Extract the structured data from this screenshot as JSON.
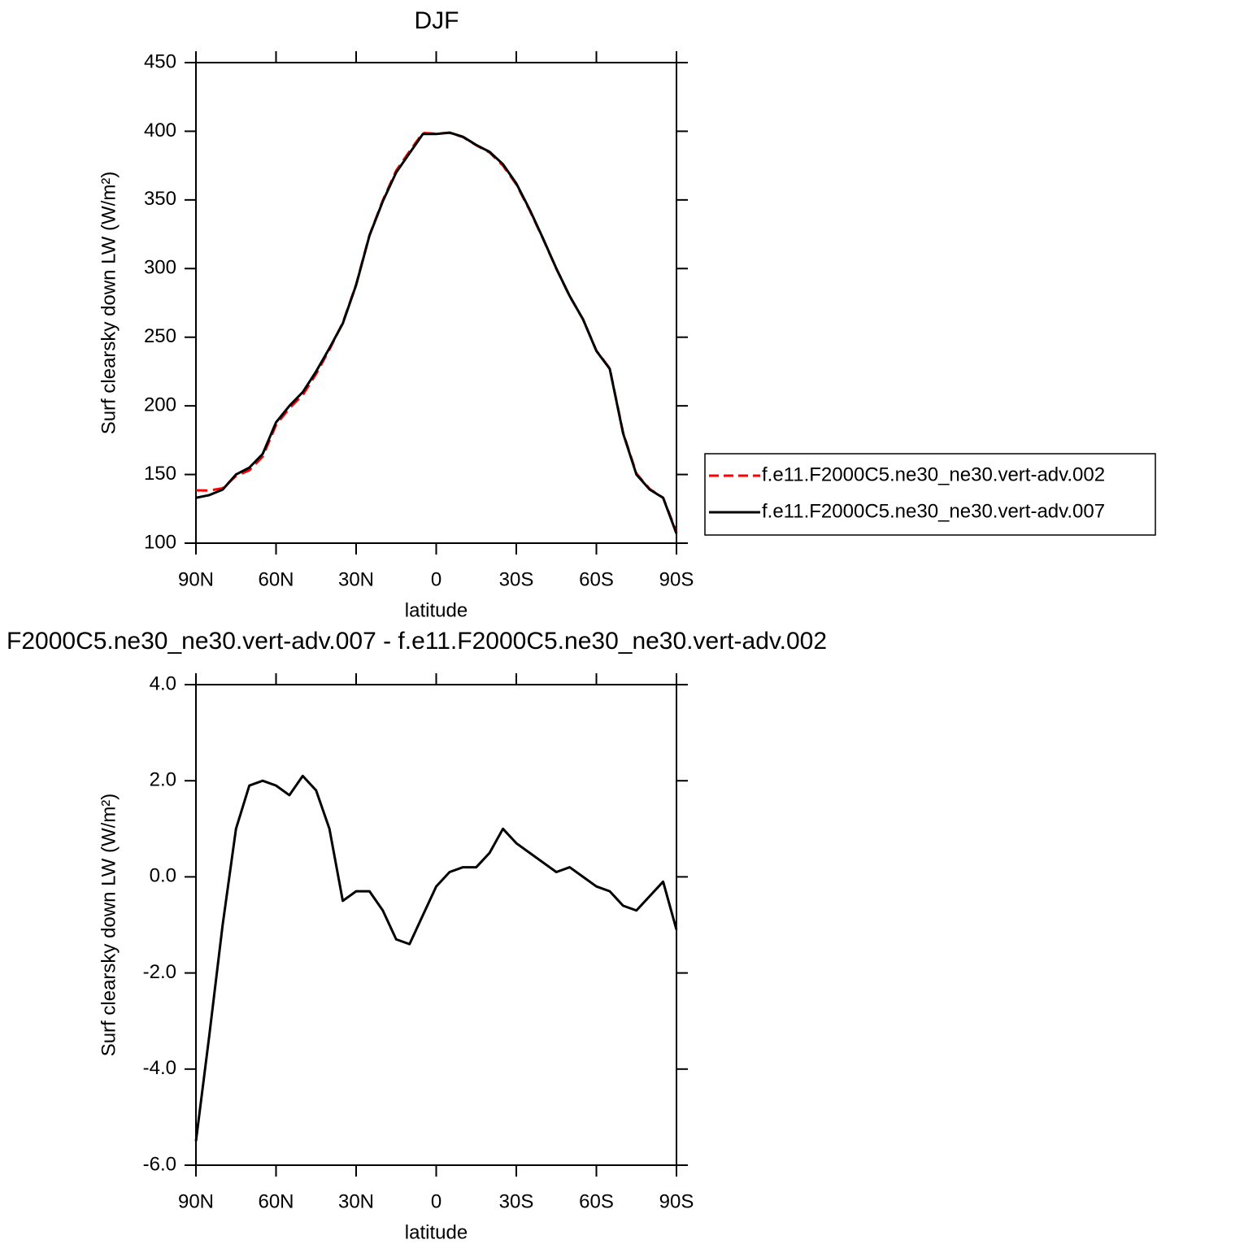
{
  "chart_data": [
    {
      "type": "line",
      "title": "DJF",
      "x_label": "latitude",
      "y_label": "Surf clearsky down LW (W/m²)",
      "x": [
        90,
        85,
        80,
        75,
        70,
        65,
        60,
        55,
        50,
        45,
        40,
        35,
        30,
        25,
        20,
        15,
        10,
        5,
        0,
        -5,
        -10,
        -15,
        -20,
        -25,
        -30,
        -35,
        -40,
        -45,
        -50,
        -55,
        -60,
        -65,
        -70,
        -75,
        -80,
        -85,
        -90
      ],
      "series": [
        {
          "name": "f.e11.F2000C5.ne30_ne30.vert-adv.002",
          "color": "#ff0000",
          "line_style": "dashed",
          "values": [
            138.5,
            138.3,
            140,
            149,
            153.1,
            163,
            186.1,
            198.3,
            207.9,
            223.2,
            241,
            260.5,
            288.3,
            324.3,
            349.7,
            371.3,
            385.4,
            398.8,
            398.2,
            398.9,
            395.8,
            389.8,
            384.5,
            375,
            361.3,
            342.5,
            321.7,
            299.9,
            279.8,
            263,
            240.2,
            227.3,
            180.6,
            150.7,
            139.4,
            133.1,
            108.1
          ]
        },
        {
          "name": "f.e11.F2000C5.ne30_ne30.vert-adv.007",
          "color": "#000000",
          "line_style": "solid",
          "values": [
            133,
            135,
            139,
            150,
            155,
            165,
            188,
            200,
            210,
            225,
            242,
            260,
            288,
            324,
            349,
            370,
            384,
            398,
            398,
            399,
            396,
            390,
            385,
            376,
            362,
            343,
            322,
            300,
            280,
            263,
            240,
            227,
            180,
            150,
            139,
            133,
            107
          ]
        }
      ],
      "xlim": [
        90,
        -90
      ],
      "xticks": [
        {
          "value": 90,
          "label": "90N"
        },
        {
          "value": 60,
          "label": "60N"
        },
        {
          "value": 30,
          "label": "30N"
        },
        0,
        {
          "value": -30,
          "label": "30S"
        },
        {
          "value": -60,
          "label": "60S"
        },
        {
          "value": -90,
          "label": "90S"
        }
      ],
      "ylim": [
        100,
        450
      ],
      "yticks": [
        100,
        150,
        200,
        250,
        300,
        350,
        400,
        450
      ],
      "legend": "outside-right"
    },
    {
      "type": "line",
      "title": "F2000C5.ne30_ne30.vert-adv.007 - f.e11.F2000C5.ne30_ne30.vert-adv.002",
      "x_label": "latitude",
      "y_label": "Surf clearsky down LW (W/m²)",
      "x": [
        90,
        85,
        80,
        75,
        70,
        65,
        60,
        55,
        50,
        45,
        40,
        35,
        30,
        25,
        20,
        15,
        10,
        5,
        0,
        -5,
        -10,
        -15,
        -20,
        -25,
        -30,
        -35,
        -40,
        -45,
        -50,
        -55,
        -60,
        -65,
        -70,
        -75,
        -80,
        -85,
        -90
      ],
      "series": [
        {
          "color": "#000000",
          "line_style": "solid",
          "values": [
            -5.5,
            -3.3,
            -1.0,
            1.0,
            1.9,
            2.0,
            1.9,
            1.7,
            2.1,
            1.8,
            1.0,
            -0.5,
            -0.3,
            -0.3,
            -0.7,
            -1.3,
            -1.4,
            -0.8,
            -0.2,
            0.1,
            0.2,
            0.2,
            0.5,
            1.0,
            0.7,
            0.5,
            0.3,
            0.1,
            0.2,
            0.0,
            -0.2,
            -0.3,
            -0.6,
            -0.7,
            -0.4,
            -0.1,
            -1.1
          ]
        }
      ],
      "xlim": [
        90,
        -90
      ],
      "xticks": [
        {
          "value": 90,
          "label": "90N"
        },
        {
          "value": 60,
          "label": "60N"
        },
        {
          "value": 30,
          "label": "30N"
        },
        0,
        {
          "value": -30,
          "label": "30S"
        },
        {
          "value": -60,
          "label": "60S"
        },
        {
          "value": -90,
          "label": "90S"
        }
      ],
      "ylim": [
        -6,
        4
      ],
      "yticks": [
        {
          "value": -6,
          "label": "-6.0"
        },
        {
          "value": -4,
          "label": "-4.0"
        },
        {
          "value": -2,
          "label": "-2.0"
        },
        {
          "value": 0,
          "label": "0.0"
        },
        {
          "value": 2,
          "label": "2.0"
        },
        {
          "value": 4,
          "label": "4.0"
        }
      ]
    }
  ]
}
